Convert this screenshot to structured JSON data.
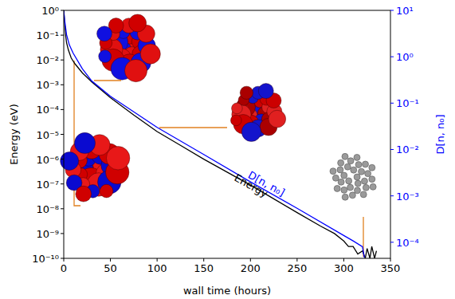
{
  "chart_data": {
    "type": "line",
    "x_label": "wall time (hours)",
    "y_label": "Energy (eV)",
    "y2_label": "D[n, n₀]",
    "log": "y",
    "xlim": [
      0,
      350
    ],
    "xticks": [
      0,
      50,
      100,
      150,
      200,
      250,
      300,
      350
    ],
    "ylim": [
      1e-10,
      1
    ],
    "yticks": [
      {
        "value": 1e-10,
        "label": "10⁻¹⁰"
      },
      {
        "value": 1e-09,
        "label": "10⁻⁹"
      },
      {
        "value": 1e-08,
        "label": "10⁻⁸"
      },
      {
        "value": 1e-07,
        "label": "10⁻⁷"
      },
      {
        "value": 1e-06,
        "label": "10⁻⁶"
      },
      {
        "value": 1e-05,
        "label": "10⁻⁵"
      },
      {
        "value": 0.0001,
        "label": "10⁻⁴"
      },
      {
        "value": 0.001,
        "label": "10⁻³"
      },
      {
        "value": 0.01,
        "label": "10⁻²"
      },
      {
        "value": 0.1,
        "label": "10⁻¹"
      },
      {
        "value": 1,
        "label": "10⁰"
      }
    ],
    "y2lim": [
      4.5e-05,
      10
    ],
    "y2ticks": [
      {
        "value": 0.0001,
        "label": "10⁻⁴"
      },
      {
        "value": 0.001,
        "label": "10⁻³"
      },
      {
        "value": 0.01,
        "label": "10⁻²"
      },
      {
        "value": 0.1,
        "label": "10⁻¹"
      },
      {
        "value": 1,
        "label": "10⁰"
      },
      {
        "value": 10,
        "label": "10¹"
      }
    ],
    "series": [
      {
        "name": "Energy",
        "color": "#000000",
        "x": [
          0,
          1,
          2,
          3,
          5,
          8,
          12,
          20,
          30,
          50,
          75,
          100,
          125,
          150,
          175,
          200,
          225,
          250,
          275,
          290,
          300,
          305,
          310,
          315,
          320,
          323,
          325,
          328,
          330,
          333,
          335
        ],
        "values": [
          1,
          0.3,
          0.1,
          0.05,
          0.025,
          0.012,
          0.007,
          0.003,
          0.0013,
          0.0003,
          6e-05,
          1.3e-05,
          3.6e-06,
          1e-06,
          3e-07,
          9e-08,
          2.5e-08,
          7e-09,
          2e-09,
          1e-09,
          5e-10,
          3e-10,
          3e-10,
          1.5e-10,
          2e-10,
          1e-10,
          2.5e-10,
          1e-10,
          3e-10,
          1e-10,
          2e-10
        ]
      },
      {
        "name": "D[n, n₀]",
        "color": "#0000ff",
        "axis": "y2",
        "x": [
          0,
          1,
          3,
          6,
          10,
          20,
          30,
          50,
          75,
          100,
          150,
          200,
          250,
          300,
          310,
          320,
          322
        ],
        "values": [
          10,
          6,
          3,
          1.8,
          1.2,
          0.55,
          0.3,
          0.14,
          0.065,
          0.03,
          0.0078,
          0.002,
          0.00054,
          0.00014,
          0.000107,
          8e-05,
          4.7e-05
        ]
      }
    ]
  }
}
